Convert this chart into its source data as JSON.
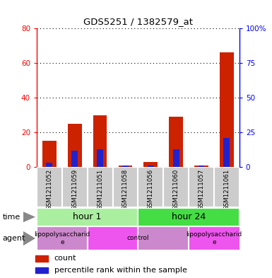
{
  "title": "GDS5251 / 1382579_at",
  "samples": [
    "GSM1211052",
    "GSM1211059",
    "GSM1211051",
    "GSM1211058",
    "GSM1211056",
    "GSM1211060",
    "GSM1211057",
    "GSM1211061"
  ],
  "counts": [
    15,
    25,
    30,
    1,
    3,
    29,
    1,
    66
  ],
  "percentile_ranks": [
    3,
    12,
    13,
    1,
    1,
    13,
    1,
    21
  ],
  "bar_color": "#cc2200",
  "percentile_color": "#2222cc",
  "left_ylim": [
    0,
    80
  ],
  "right_ylim": [
    0,
    100
  ],
  "left_yticks": [
    0,
    20,
    40,
    60,
    80
  ],
  "right_yticks": [
    0,
    25,
    50,
    75,
    100
  ],
  "right_yticklabels": [
    "0",
    "25",
    "50",
    "75",
    "100%"
  ],
  "left_yticklabels": [
    "0",
    "20",
    "40",
    "60",
    "80"
  ],
  "time_color_1": "#aaeea0",
  "time_color_2": "#44dd44",
  "agent_color_lps": "#cc88cc",
  "agent_color_ctrl": "#ee55ee",
  "bg_color": "#cccccc",
  "bar_width": 0.55
}
